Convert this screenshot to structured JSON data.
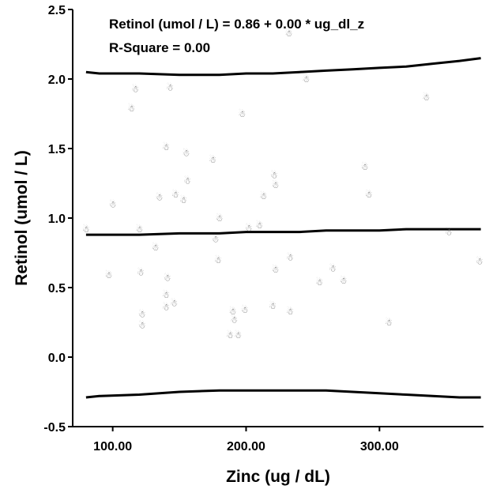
{
  "chart_data": {
    "type": "scatter",
    "xlabel": "Zinc (ug / dL)",
    "ylabel": "Retinol (umol / L)",
    "xlim": [
      70,
      378
    ],
    "ylim": [
      -0.5,
      2.5
    ],
    "x_ticks": [
      100,
      200,
      300
    ],
    "x_tick_labels": [
      "100.00",
      "200.00",
      "300.00"
    ],
    "y_ticks": [
      -0.5,
      0.0,
      0.5,
      1.0,
      1.5,
      2.0,
      2.5
    ],
    "y_tick_labels": [
      "-0.5",
      "0.0",
      "0.5",
      "1.0",
      "1.5",
      "2.0",
      "2.5"
    ],
    "annotations": [
      "Retinol (umol / L) = 0.86 + 0.00 * ug_dl_z",
      "R-Square = 0.00"
    ],
    "marker_glyph": "☃",
    "marker_color": "#666666",
    "line_color": "#000000",
    "points": [
      {
        "x": 80,
        "y": 0.92
      },
      {
        "x": 97,
        "y": 0.59
      },
      {
        "x": 100,
        "y": 1.1
      },
      {
        "x": 114,
        "y": 1.79
      },
      {
        "x": 117,
        "y": 1.93
      },
      {
        "x": 120,
        "y": 0.92
      },
      {
        "x": 121,
        "y": 0.61
      },
      {
        "x": 122,
        "y": 0.31
      },
      {
        "x": 122,
        "y": 0.23
      },
      {
        "x": 132,
        "y": 0.79
      },
      {
        "x": 135,
        "y": 1.15
      },
      {
        "x": 140,
        "y": 1.51
      },
      {
        "x": 140,
        "y": 0.45
      },
      {
        "x": 140,
        "y": 0.36
      },
      {
        "x": 141,
        "y": 0.57
      },
      {
        "x": 143,
        "y": 1.94
      },
      {
        "x": 146,
        "y": 0.39
      },
      {
        "x": 147,
        "y": 1.17
      },
      {
        "x": 153,
        "y": 1.13
      },
      {
        "x": 155,
        "y": 1.47
      },
      {
        "x": 156,
        "y": 1.27
      },
      {
        "x": 175,
        "y": 1.42
      },
      {
        "x": 177,
        "y": 0.85
      },
      {
        "x": 179,
        "y": 0.7
      },
      {
        "x": 180,
        "y": 1.0
      },
      {
        "x": 188,
        "y": 0.16
      },
      {
        "x": 190,
        "y": 0.33
      },
      {
        "x": 191,
        "y": 0.27
      },
      {
        "x": 194,
        "y": 0.16
      },
      {
        "x": 197,
        "y": 1.75
      },
      {
        "x": 199,
        "y": 0.34
      },
      {
        "x": 202,
        "y": 0.93
      },
      {
        "x": 210,
        "y": 0.95
      },
      {
        "x": 213,
        "y": 1.16
      },
      {
        "x": 220,
        "y": 0.37
      },
      {
        "x": 221,
        "y": 1.31
      },
      {
        "x": 222,
        "y": 1.24
      },
      {
        "x": 222,
        "y": 0.63
      },
      {
        "x": 232,
        "y": 2.33
      },
      {
        "x": 233,
        "y": 0.72
      },
      {
        "x": 233,
        "y": 0.33
      },
      {
        "x": 245,
        "y": 2.0
      },
      {
        "x": 255,
        "y": 0.54
      },
      {
        "x": 265,
        "y": 0.64
      },
      {
        "x": 273,
        "y": 0.55
      },
      {
        "x": 289,
        "y": 1.37
      },
      {
        "x": 292,
        "y": 1.17
      },
      {
        "x": 307,
        "y": 0.25
      },
      {
        "x": 335,
        "y": 1.87
      },
      {
        "x": 352,
        "y": 0.9
      },
      {
        "x": 375,
        "y": 0.69
      }
    ],
    "lines": [
      {
        "role": "upper",
        "x": [
          80,
          90,
          120,
          150,
          180,
          200,
          220,
          240,
          260,
          280,
          300,
          320,
          340,
          360,
          376
        ],
        "y": [
          2.05,
          2.04,
          2.04,
          2.03,
          2.03,
          2.04,
          2.04,
          2.05,
          2.06,
          2.07,
          2.08,
          2.09,
          2.11,
          2.13,
          2.15
        ]
      },
      {
        "role": "middle",
        "x": [
          80,
          90,
          120,
          150,
          180,
          200,
          220,
          240,
          260,
          280,
          300,
          320,
          340,
          360,
          376
        ],
        "y": [
          0.88,
          0.88,
          0.88,
          0.89,
          0.89,
          0.9,
          0.9,
          0.9,
          0.91,
          0.91,
          0.91,
          0.92,
          0.92,
          0.92,
          0.92
        ]
      },
      {
        "role": "lower",
        "x": [
          80,
          90,
          120,
          150,
          180,
          200,
          220,
          240,
          260,
          280,
          300,
          320,
          340,
          360,
          376
        ],
        "y": [
          -0.29,
          -0.28,
          -0.27,
          -0.25,
          -0.24,
          -0.24,
          -0.24,
          -0.24,
          -0.24,
          -0.25,
          -0.26,
          -0.27,
          -0.28,
          -0.29,
          -0.29
        ]
      }
    ]
  }
}
